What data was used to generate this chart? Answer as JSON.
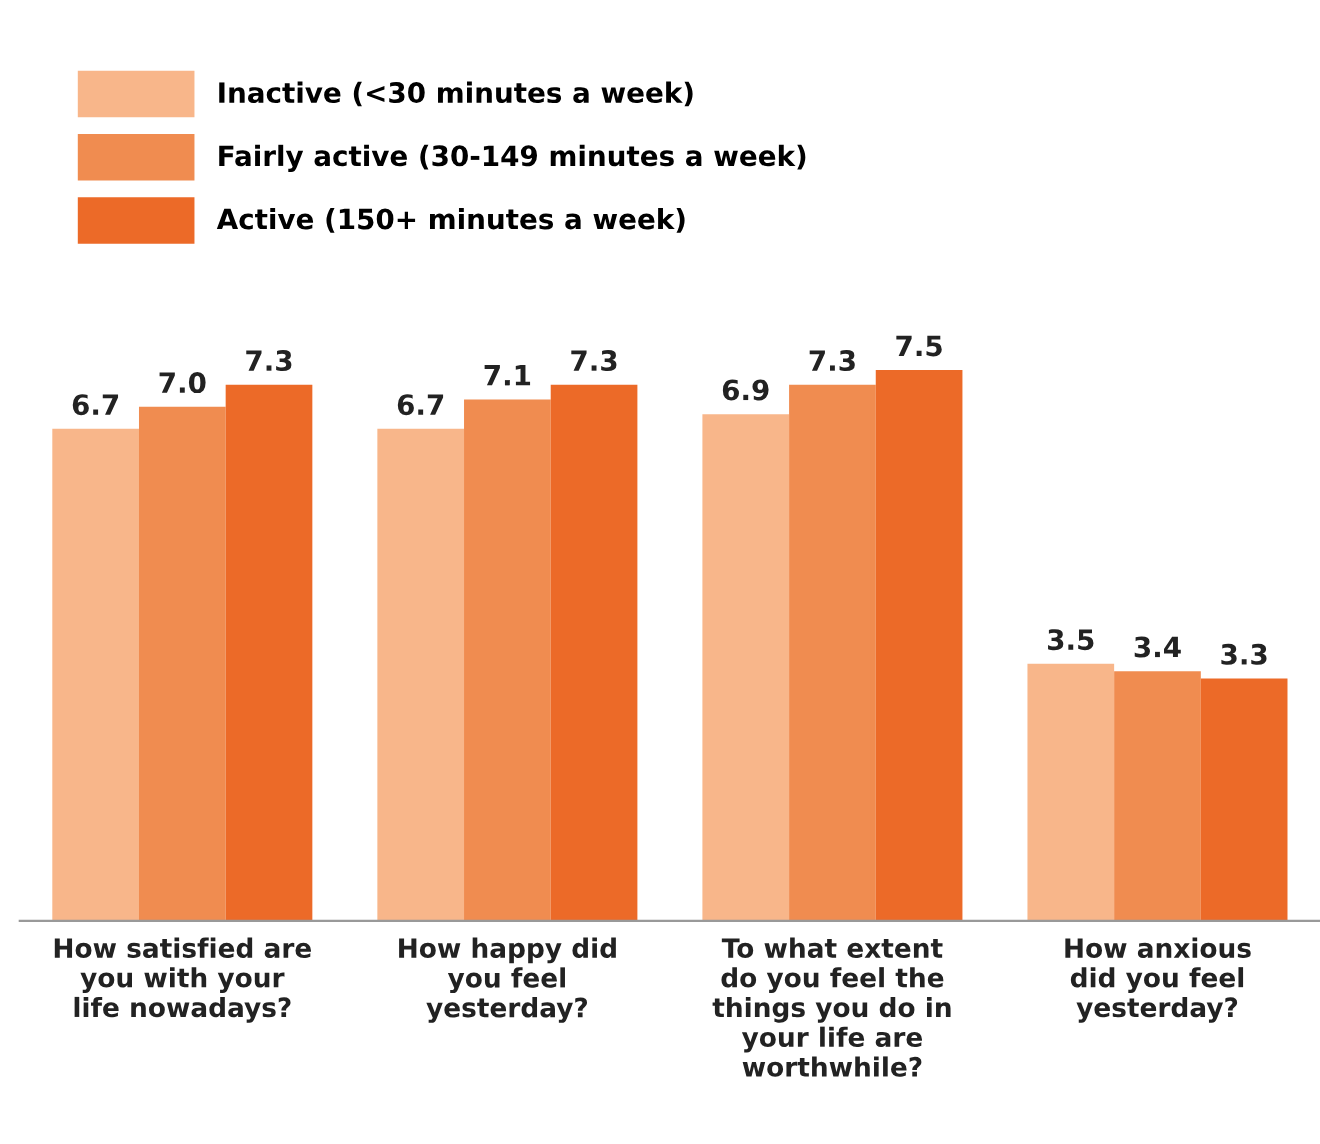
{
  "chart_data": {
    "type": "bar",
    "categories": [
      "How satisfied are\nyou with your\nlife nowadays?",
      "How happy did\nyou feel\nyesterday?",
      "To what extent\ndo you feel the\nthings you do in\nyour life are\nworthwhile?",
      "How anxious\ndid you feel\nyesterday?"
    ],
    "series": [
      {
        "name": "Inactive (<30 minutes a week)",
        "color": "#f8b68a",
        "values": [
          6.7,
          6.7,
          6.9,
          3.5
        ],
        "value_labels": [
          "6.7",
          "6.7",
          "6.9",
          "3.5"
        ]
      },
      {
        "name": "Fairly active (30-149 minutes a week)",
        "color": "#f08c50",
        "values": [
          7.0,
          7.1,
          7.3,
          3.4
        ],
        "value_labels": [
          "7.0",
          "7.1",
          "7.3",
          "3.4"
        ]
      },
      {
        "name": "Active (150+ minutes a week)",
        "color": "#ec6a28",
        "values": [
          7.3,
          7.3,
          7.5,
          3.3
        ],
        "value_labels": [
          "7.3",
          "7.3",
          "7.5",
          "3.3"
        ]
      }
    ],
    "legend": "top left",
    "grid": false
  }
}
